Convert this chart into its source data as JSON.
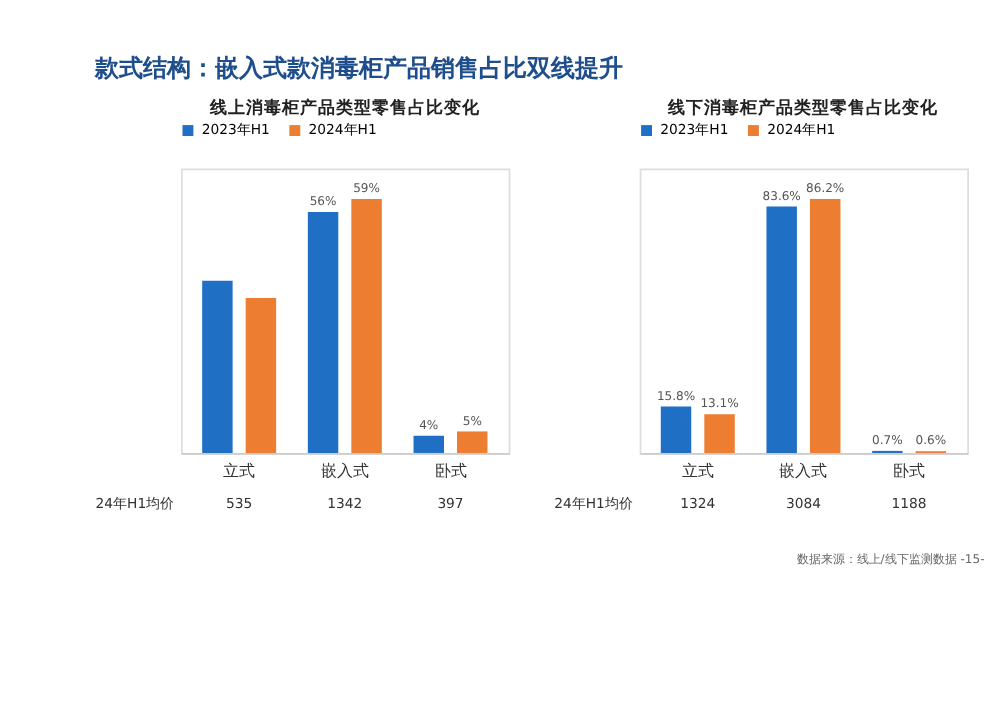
{
  "chart_data": [
    {
      "type": "bar",
      "title": "线上消毒柜产品类型零售占比变化",
      "categories": [
        "立式",
        "嵌入式",
        "卧式"
      ],
      "legend": "top",
      "series": [
        {
          "name": "2023年H1",
          "color": "#1f6fc5",
          "values": [
            40,
            56,
            4
          ],
          "value_labels": [
            null,
            "56%",
            "4%"
          ]
        },
        {
          "name": "2024年H1",
          "color": "#ed7d31",
          "values": [
            36,
            59,
            5
          ],
          "value_labels": [
            null,
            "59%",
            "5%"
          ]
        }
      ],
      "annotations": [
        "款式结构：嵌入式款消毒柜产品销售占比双线提升",
        "24年H1均价",
        "535",
        "1342",
        "397"
      ]
    },
    {
      "type": "bar",
      "title": "线下消毒柜产品类型零售占比变化",
      "categories": [
        "立式",
        "嵌入式",
        "卧式"
      ],
      "legend": "top",
      "series": [
        {
          "name": "2023年H1",
          "color": "#1f6fc5",
          "values": [
            15.8,
            83.6,
            0.7
          ],
          "value_labels": [
            "15.8%",
            "83.6%",
            "0.7%"
          ]
        },
        {
          "name": "2024年H1",
          "color": "#ed7d31",
          "values": [
            13.1,
            86.2,
            0.6
          ],
          "value_labels": [
            "13.1%",
            "86.2%",
            "0.6%"
          ]
        }
      ],
      "annotations": [
        "24年H1均价",
        "1324",
        "3084",
        "1188",
        "数据来源：线上/线下监测数据",
        "-15-"
      ]
    }
  ]
}
